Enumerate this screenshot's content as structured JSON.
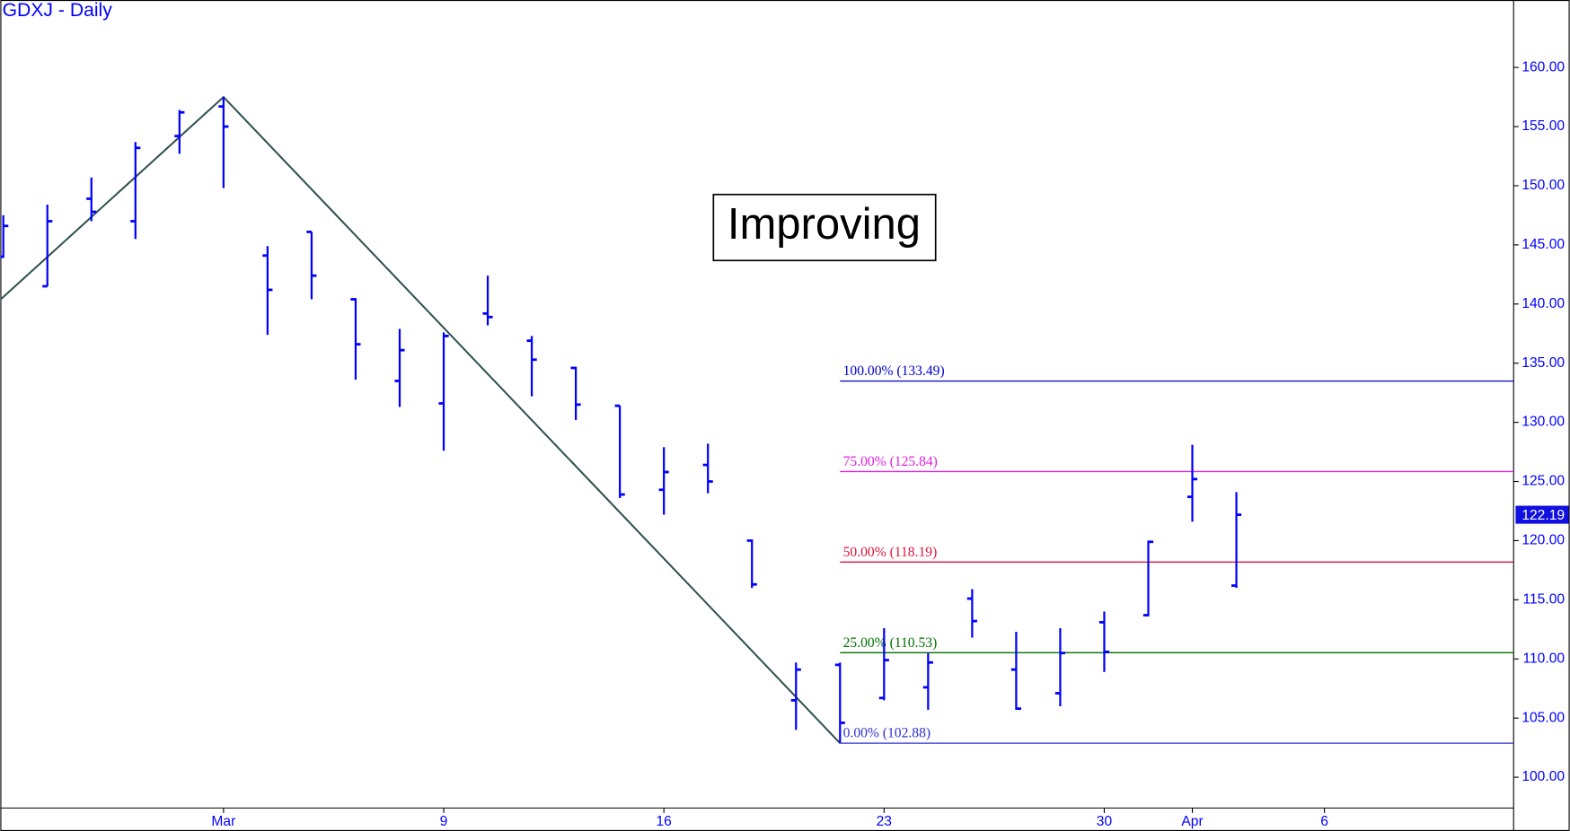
{
  "chart_data": {
    "type": "ohlc",
    "title": "GDXJ - Daily",
    "annotation": "Improving",
    "color": "#0000ff",
    "categories": [
      null,
      null,
      null,
      null,
      null,
      "Mar",
      null,
      null,
      null,
      null,
      "9",
      null,
      null,
      null,
      null,
      "16",
      null,
      null,
      null,
      null,
      "23",
      null,
      null,
      null,
      null,
      "30",
      null,
      "Apr",
      null,
      null,
      "6",
      null,
      null,
      null,
      null
    ],
    "open": [
      144.0,
      141.5,
      148.9,
      147.0,
      154.2,
      156.7,
      144.1,
      146.1,
      140.4,
      133.5,
      131.6,
      139.2,
      136.9,
      134.6,
      131.4,
      124.3,
      126.4,
      120.0,
      106.5,
      109.5,
      106.7,
      107.6,
      115.1,
      109.1,
      107.1,
      113.1,
      113.7,
      123.7,
      116.2,
      null,
      null,
      null,
      null,
      null,
      null
    ],
    "high": [
      147.5,
      148.4,
      150.7,
      153.7,
      156.4,
      157.5,
      144.9,
      146.1,
      140.5,
      137.9,
      137.6,
      142.4,
      137.3,
      134.7,
      131.4,
      127.9,
      128.2,
      120.1,
      109.7,
      109.7,
      112.6,
      110.5,
      115.9,
      112.3,
      112.6,
      114.0,
      120.0,
      128.1,
      124.1,
      null,
      null,
      null,
      null,
      null,
      null
    ],
    "low": [
      143.9,
      141.5,
      147.0,
      145.5,
      152.7,
      149.8,
      137.4,
      140.4,
      133.6,
      131.3,
      127.6,
      138.2,
      132.2,
      130.2,
      123.6,
      122.2,
      124.0,
      116.0,
      104.0,
      102.88,
      106.5,
      105.7,
      111.8,
      105.7,
      106.0,
      108.9,
      113.6,
      121.6,
      116.0,
      null,
      null,
      null,
      null,
      null,
      null
    ],
    "close": [
      146.6,
      147.0,
      147.8,
      153.2,
      156.2,
      155.0,
      141.2,
      142.4,
      136.6,
      136.1,
      137.3,
      138.9,
      135.3,
      131.5,
      123.9,
      125.8,
      125.0,
      116.3,
      109.1,
      104.6,
      109.9,
      109.7,
      113.2,
      105.8,
      110.5,
      110.6,
      119.9,
      125.2,
      122.19,
      null,
      null,
      null,
      null,
      null,
      null
    ],
    "last_price": 122.19,
    "last_price_color": "#1010e0",
    "zigzag": {
      "color": "#2f4f4f",
      "x": [
        0,
        5,
        19
      ],
      "values": [
        140.6,
        157.5,
        102.88
      ]
    },
    "fib_levels": [
      {
        "label": "100.00% (133.49)",
        "value": 133.49,
        "color": "#0000cc"
      },
      {
        "label": "75.00% (125.84)",
        "value": 125.84,
        "color": "#e020e0"
      },
      {
        "label": "50.00% (118.19)",
        "value": 118.19,
        "color": "#dc143c"
      },
      {
        "label": "25.00% (110.53)",
        "value": 110.53,
        "color": "#007000"
      },
      {
        "label": "0.00% (102.88)",
        "value": 102.88,
        "color": "#3030d0"
      }
    ],
    "ylim": [
      97.4,
      165.7
    ],
    "yticks": [
      {
        "value": 100,
        "label": "100.00"
      },
      {
        "value": 105,
        "label": "105.00"
      },
      {
        "value": 110,
        "label": "110.00"
      },
      {
        "value": 115,
        "label": "115.00"
      },
      {
        "value": 120,
        "label": "120.00"
      },
      {
        "value": 125,
        "label": "125.00"
      },
      {
        "value": 130,
        "label": "130.00"
      },
      {
        "value": 135,
        "label": "135.00"
      },
      {
        "value": 140,
        "label": "140.00"
      },
      {
        "value": 145,
        "label": "145.00"
      },
      {
        "value": 150,
        "label": "150.00"
      },
      {
        "value": 155,
        "label": "155.00"
      },
      {
        "value": 160,
        "label": "160.00"
      }
    ]
  }
}
